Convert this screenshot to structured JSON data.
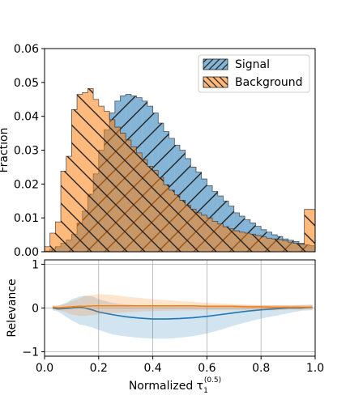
{
  "chart_data": [
    {
      "type": "bar",
      "panel": "top",
      "style": "step-histogram",
      "ylabel": "Fraction",
      "xlim": [
        0,
        1
      ],
      "ylim": [
        0,
        0.06
      ],
      "yticks": [
        0,
        0.01,
        0.02,
        0.03,
        0.04,
        0.05,
        0.06
      ],
      "ytick_labels": [
        "0.00",
        "0.01",
        "0.02",
        "0.03",
        "0.04",
        "0.05",
        "0.06"
      ],
      "grid": false,
      "legend": {
        "placement": "top-right"
      },
      "bin_edges_start": 0.0,
      "bin_width": 0.02,
      "series": [
        {
          "name": "Signal",
          "color": "#1f77b4",
          "hatch": "/",
          "values": [
            0.0002,
            0.0008,
            0.0015,
            0.0025,
            0.0035,
            0.0052,
            0.0085,
            0.012,
            0.017,
            0.023,
            0.03,
            0.036,
            0.041,
            0.0445,
            0.046,
            0.0465,
            0.046,
            0.0455,
            0.0445,
            0.043,
            0.041,
            0.038,
            0.0355,
            0.0335,
            0.0315,
            0.03,
            0.0275,
            0.025,
            0.0235,
            0.0215,
            0.0195,
            0.0178,
            0.0165,
            0.015,
            0.0135,
            0.0115,
            0.0105,
            0.0095,
            0.0085,
            0.0075,
            0.0065,
            0.0058,
            0.005,
            0.0045,
            0.0038,
            0.0034,
            0.003,
            0.0025,
            0.0021,
            0.0018
          ]
        },
        {
          "name": "Background",
          "color": "#ff7f0e",
          "hatch": "\\",
          "values": [
            0.0015,
            0.0055,
            0.0088,
            0.0238,
            0.0282,
            0.042,
            0.0465,
            0.047,
            0.0482,
            0.045,
            0.043,
            0.0415,
            0.039,
            0.0368,
            0.035,
            0.033,
            0.031,
            0.0292,
            0.0272,
            0.0252,
            0.024,
            0.022,
            0.0198,
            0.0182,
            0.0168,
            0.0152,
            0.0138,
            0.0126,
            0.0115,
            0.0108,
            0.01,
            0.009,
            0.0082,
            0.0074,
            0.0068,
            0.0062,
            0.0058,
            0.0055,
            0.0052,
            0.0048,
            0.0044,
            0.004,
            0.0038,
            0.0036,
            0.0033,
            0.0028,
            0.0025,
            0.0022,
            0.0125,
            0.0125
          ]
        }
      ]
    },
    {
      "type": "line",
      "panel": "bottom",
      "xlabel_main": "Normalized τ",
      "xlabel_sub": "1",
      "xlabel_sup": "(0.5)",
      "ylabel": "Relevance",
      "xlim": [
        0,
        1
      ],
      "ylim": [
        -1.1,
        1.1
      ],
      "xticks": [
        0,
        0.2,
        0.4,
        0.6,
        0.8,
        1.0
      ],
      "xtick_labels": [
        "0.0",
        "0.2",
        "0.4",
        "0.6",
        "0.8",
        "1.0"
      ],
      "yticks": [
        -1,
        0,
        1
      ],
      "ytick_labels": [
        "−1",
        "0",
        "1"
      ],
      "grid": true,
      "x": [
        0.03,
        0.05,
        0.08,
        0.1,
        0.13,
        0.15,
        0.18,
        0.2,
        0.25,
        0.3,
        0.35,
        0.4,
        0.45,
        0.5,
        0.55,
        0.6,
        0.65,
        0.7,
        0.75,
        0.8,
        0.85,
        0.9,
        0.95,
        0.99
      ],
      "series": [
        {
          "name": "Signal",
          "color": "#1f77b4",
          "values": [
            0.0,
            -0.02,
            -0.01,
            0.0,
            0.02,
            0.0,
            -0.05,
            -0.09,
            -0.15,
            -0.2,
            -0.23,
            -0.25,
            -0.25,
            -0.24,
            -0.22,
            -0.19,
            -0.15,
            -0.11,
            -0.07,
            -0.04,
            -0.02,
            0.0,
            0.0,
            0.02
          ],
          "band_lower": [
            -0.05,
            -0.08,
            -0.2,
            -0.28,
            -0.38,
            -0.4,
            -0.45,
            -0.5,
            -0.6,
            -0.65,
            -0.68,
            -0.7,
            -0.7,
            -0.68,
            -0.64,
            -0.58,
            -0.5,
            -0.4,
            -0.32,
            -0.24,
            -0.18,
            -0.12,
            -0.06,
            -0.05
          ],
          "band_upper": [
            0.06,
            0.05,
            0.12,
            0.2,
            0.26,
            0.28,
            0.26,
            0.2,
            0.12,
            0.08,
            0.06,
            0.05,
            0.04,
            0.04,
            0.05,
            0.06,
            0.06,
            0.06,
            0.06,
            0.06,
            0.06,
            0.06,
            0.07,
            0.08
          ]
        },
        {
          "name": "Background",
          "color": "#ff7f0e",
          "values": [
            0.02,
            0.01,
            0.02,
            0.03,
            0.04,
            0.04,
            0.05,
            0.05,
            0.05,
            0.05,
            0.05,
            0.05,
            0.05,
            0.05,
            0.05,
            0.04,
            0.04,
            0.04,
            0.03,
            0.03,
            0.02,
            0.02,
            0.02,
            0.02
          ],
          "band_lower": [
            -0.02,
            -0.05,
            -0.1,
            -0.15,
            -0.18,
            -0.18,
            -0.16,
            -0.14,
            -0.12,
            -0.1,
            -0.08,
            -0.07,
            -0.06,
            -0.05,
            -0.05,
            -0.05,
            -0.05,
            -0.05,
            -0.05,
            -0.05,
            -0.05,
            -0.04,
            -0.04,
            -0.03
          ],
          "band_upper": [
            0.05,
            0.06,
            0.1,
            0.15,
            0.22,
            0.28,
            0.3,
            0.32,
            0.3,
            0.26,
            0.23,
            0.2,
            0.18,
            0.16,
            0.14,
            0.12,
            0.1,
            0.09,
            0.08,
            0.07,
            0.07,
            0.07,
            0.07,
            0.07
          ]
        }
      ]
    }
  ]
}
